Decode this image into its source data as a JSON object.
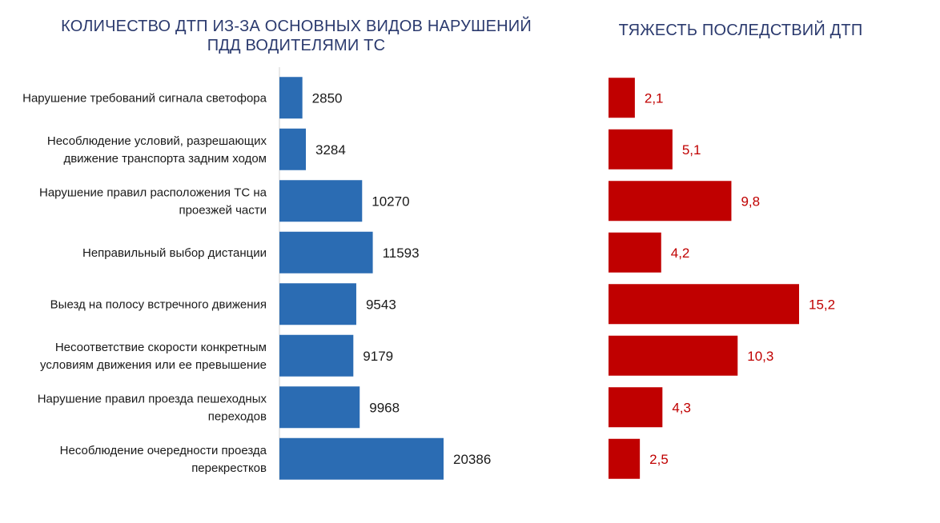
{
  "chart_data": [
    {
      "type": "bar",
      "orientation": "horizontal",
      "title": "КОЛИЧЕСТВО ДТП ИЗ-ЗА ОСНОВНЫХ ВИДОВ НАРУШЕНИЙ ПДД ВОДИТЕЛЯМИ ТС",
      "title_lines": [
        "КОЛИЧЕСТВО ДТП ИЗ-ЗА ОСНОВНЫХ ВИДОВ НАРУШЕНИЙ",
        "ПДД ВОДИТЕЛЯМИ ТС"
      ],
      "categories": [
        [
          "Нарушение требований сигнала светофора"
        ],
        [
          "Несоблюдение условий, разрешающих",
          "движение транспорта задним ходом"
        ],
        [
          "Нарушение правил расположения ТС на",
          "проезжей части"
        ],
        [
          "Неправильный выбор дистанции"
        ],
        [
          "Выезд на полосу встречного движения"
        ],
        [
          "Несоответствие скорости конкретным",
          "условиям движения или ее превышение"
        ],
        [
          "Нарушение правил проезда пешеходных",
          "переходов"
        ],
        [
          "Несоблюдение очередности проезда",
          "перекрестков"
        ]
      ],
      "values": [
        2850,
        3284,
        10270,
        11593,
        9543,
        9179,
        9968,
        20386
      ],
      "value_labels": [
        "2850",
        "3284",
        "10270",
        "11593",
        "9543",
        "9179",
        "9968",
        "20386"
      ],
      "xlim": [
        0,
        25000
      ],
      "color": "#2b6cb3",
      "label_color": "#1a1a1a",
      "grid": false
    },
    {
      "type": "bar",
      "orientation": "horizontal",
      "title": "ТЯЖЕСТЬ ПОСЛЕДСТВИЙ ДТП",
      "values": [
        2.1,
        5.1,
        9.8,
        4.2,
        15.2,
        10.3,
        4.3,
        2.5
      ],
      "value_labels": [
        "2,1",
        "5,1",
        "9,8",
        "4,2",
        "15,2",
        "10,3",
        "4,3",
        "2,5"
      ],
      "xlim": [
        0,
        20
      ],
      "color": "#c00000",
      "label_color": "#c00000",
      "grid": false
    }
  ],
  "colors": {
    "title": "#2b3a6e",
    "axis": "#d0d0d0"
  }
}
